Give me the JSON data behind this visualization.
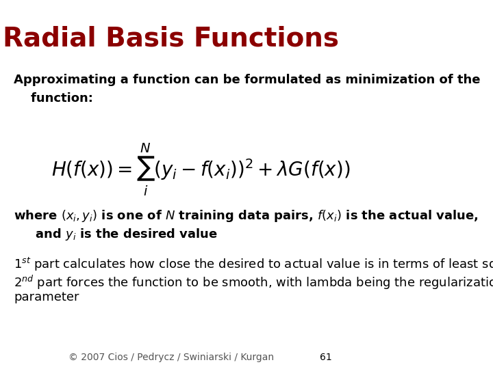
{
  "title": "Radial Basis Functions",
  "title_color": "#8B0000",
  "title_fontsize": 28,
  "title_bold": true,
  "bg_color": "#FFFFFF",
  "text_color": "#000000",
  "para1_line1": "Approximating a function can be formulated as minimization of the",
  "para1_line2": "    function:",
  "formula": "H(f(x)) = \\sum_{i}^{N} (y_i - f(x_i))^2 + \\lambda G(f(x))",
  "para2_line1": "where $(x_i, y_i)$ is one of $N$ training data pairs, $f(x_i)$ is the actual value,",
  "para2_line2": "     and $y_i$ is the desired value",
  "para3_line1": "$1^{st}$ part calculates how close the desired to actual value is in terms of least squares",
  "para3_line2": "$2^{nd}$ part forces the function to be smooth, with lambda being the regularization",
  "para3_line3": "parameter",
  "footer": "© 2007 Cios / Pedrycz / Swiniarski / Kurgan",
  "page_num": "61",
  "body_fontsize": 13,
  "bold_fontsize": 13
}
